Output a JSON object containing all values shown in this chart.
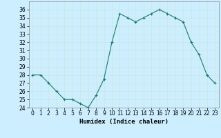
{
  "x": [
    0,
    1,
    2,
    3,
    4,
    5,
    6,
    7,
    8,
    9,
    10,
    11,
    12,
    13,
    14,
    15,
    16,
    17,
    18,
    19,
    20,
    21,
    22,
    23
  ],
  "y": [
    28,
    28,
    27,
    26,
    25,
    25,
    24.5,
    24,
    25.5,
    27.5,
    32,
    35.5,
    35,
    34.5,
    35,
    35.5,
    36,
    35.5,
    35,
    34.5,
    32,
    30.5,
    28,
    27
  ],
  "line_color": "#1a7a6e",
  "marker": "+",
  "marker_color": "#1a7a6e",
  "bg_color": "#cceeff",
  "grid_color": "#c8e8e0",
  "xlabel": "Humidex (Indice chaleur)",
  "ylim": [
    24,
    37
  ],
  "xlim": [
    -0.5,
    23.5
  ],
  "yticks": [
    24,
    25,
    26,
    27,
    28,
    29,
    30,
    31,
    32,
    33,
    34,
    35,
    36
  ],
  "xticks": [
    0,
    1,
    2,
    3,
    4,
    5,
    6,
    7,
    8,
    9,
    10,
    11,
    12,
    13,
    14,
    15,
    16,
    17,
    18,
    19,
    20,
    21,
    22,
    23
  ],
  "tick_fontsize": 5.5,
  "label_fontsize": 6.5
}
